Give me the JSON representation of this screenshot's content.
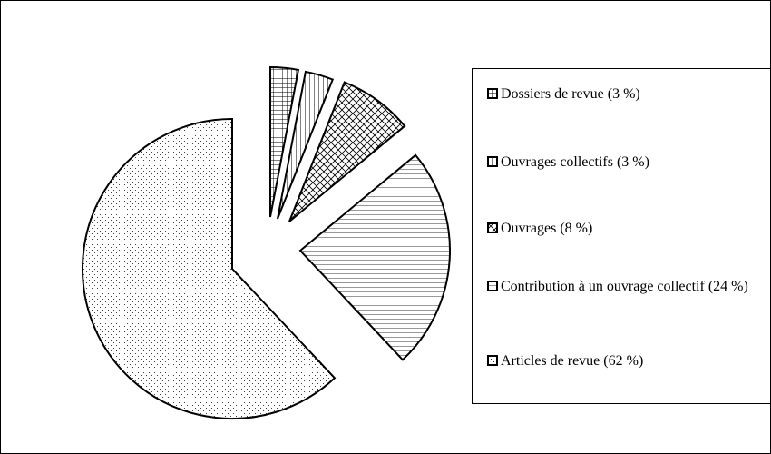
{
  "chart_data": {
    "type": "pie",
    "categories": [
      "Dossiers de revue (3 %)",
      "Ouvrages collectifs (3 %)",
      "Ouvrages (8 %)",
      "Contribution à un ouvrage collectif (24 %)",
      "Articles de revue (62 %)"
    ],
    "values": [
      3,
      3,
      8,
      24,
      62
    ],
    "color": "#000000"
  }
}
